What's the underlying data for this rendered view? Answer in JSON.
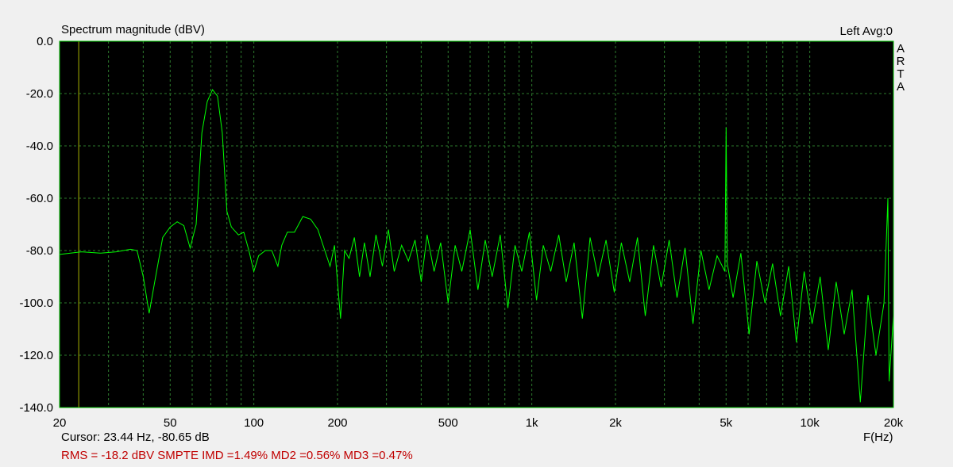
{
  "chart_data": {
    "type": "line",
    "title": "Spectrum magnitude (dBV)",
    "channel_label": "Left  Avg:0",
    "brand": [
      "A",
      "R",
      "T",
      "A"
    ],
    "x_label": "F(Hz)",
    "cursor_text": "Cursor: 23.44 Hz, -80.65 dB",
    "cursor_x": 23.44,
    "status_text": "RMS =  -18.2 dBV  SMPTE IMD =1.49%  MD2 =0.56%  MD3 =0.47%",
    "x_scale": "log",
    "grid": true,
    "background": "#000000",
    "frame_color": "#00c000",
    "grid_color": "#2d7a2d",
    "cursor_color": "#a8b400",
    "xlim": [
      20,
      20000
    ],
    "ylim": [
      -140,
      0
    ],
    "xticks": [
      20,
      50,
      100,
      200,
      500,
      {
        "value": 1000,
        "label": "1k"
      },
      {
        "value": 2000,
        "label": "2k"
      },
      {
        "value": 5000,
        "label": "5k"
      },
      {
        "value": 10000,
        "label": "10k"
      },
      {
        "value": 20000,
        "label": "20k"
      }
    ],
    "xminor": [
      30,
      40,
      60,
      70,
      80,
      90,
      300,
      400,
      600,
      700,
      800,
      900,
      3000,
      4000,
      6000,
      7000,
      8000,
      9000
    ],
    "yticks": [
      {
        "value": 0,
        "label": "0.0"
      },
      {
        "value": -20,
        "label": "-20.0"
      },
      {
        "value": -40,
        "label": "-40.0"
      },
      {
        "value": -60,
        "label": "-60.0"
      },
      {
        "value": -80,
        "label": "-80.0"
      },
      {
        "value": -100,
        "label": "-100.0"
      },
      {
        "value": -120,
        "label": "-120.0"
      },
      {
        "value": -140,
        "label": "-140.0"
      }
    ],
    "series": [
      {
        "color": "#00ff00",
        "x": [
          20,
          24,
          28,
          32,
          36,
          38,
          40,
          42,
          44,
          47,
          50,
          53,
          56,
          59,
          62,
          65,
          68,
          71,
          74,
          77,
          80,
          83,
          88,
          92,
          96,
          100,
          104,
          110,
          116,
          122,
          126,
          132,
          140,
          150,
          160,
          170,
          180,
          188,
          195,
          205,
          212,
          220,
          230,
          240,
          250,
          262,
          275,
          290,
          305,
          320,
          340,
          360,
          380,
          400,
          420,
          445,
          470,
          500,
          530,
          560,
          600,
          640,
          680,
          720,
          770,
          820,
          870,
          920,
          980,
          1040,
          1100,
          1170,
          1250,
          1330,
          1420,
          1520,
          1620,
          1730,
          1850,
          1980,
          2100,
          2250,
          2400,
          2560,
          2740,
          2920,
          3120,
          3330,
          3560,
          3800,
          4060,
          4340,
          4640,
          4950,
          5000,
          5050,
          5300,
          5650,
          6050,
          6450,
          6900,
          7350,
          7850,
          8400,
          8950,
          9550,
          10200,
          10900,
          11650,
          12450,
          13300,
          14200,
          15200,
          16200,
          17300,
          18500,
          19100,
          19300,
          20000
        ],
        "values": [
          -81.5,
          -80.5,
          -81,
          -80.5,
          -79.5,
          -80,
          -90,
          -104,
          -92,
          -75,
          -71,
          -69,
          -70.5,
          -79,
          -70,
          -35,
          -23,
          -18.5,
          -21,
          -35,
          -65,
          -71,
          -74,
          -73,
          -80,
          -88,
          -82,
          -80,
          -80,
          -86,
          -78,
          -73,
          -73,
          -67,
          -68,
          -72,
          -80,
          -86,
          -78,
          -106,
          -80,
          -83,
          -75,
          -90,
          -77,
          -90,
          -74,
          -86,
          -72,
          -88,
          -78,
          -84,
          -76,
          -92,
          -74,
          -88,
          -77,
          -100,
          -78,
          -88,
          -72,
          -95,
          -76,
          -90,
          -74,
          -102,
          -78,
          -88,
          -73,
          -99,
          -78,
          -88,
          -74,
          -92,
          -77,
          -106,
          -75,
          -90,
          -76,
          -96,
          -77,
          -92,
          -75,
          -105,
          -78,
          -94,
          -76,
          -98,
          -79,
          -108,
          -80,
          -95,
          -82,
          -88,
          -33,
          -85,
          -98,
          -81,
          -112,
          -84,
          -100,
          -85,
          -105,
          -86,
          -115,
          -88,
          -108,
          -90,
          -118,
          -92,
          -112,
          -95,
          -138,
          -97,
          -120,
          -100,
          -60,
          -130,
          -105
        ]
      }
    ]
  }
}
